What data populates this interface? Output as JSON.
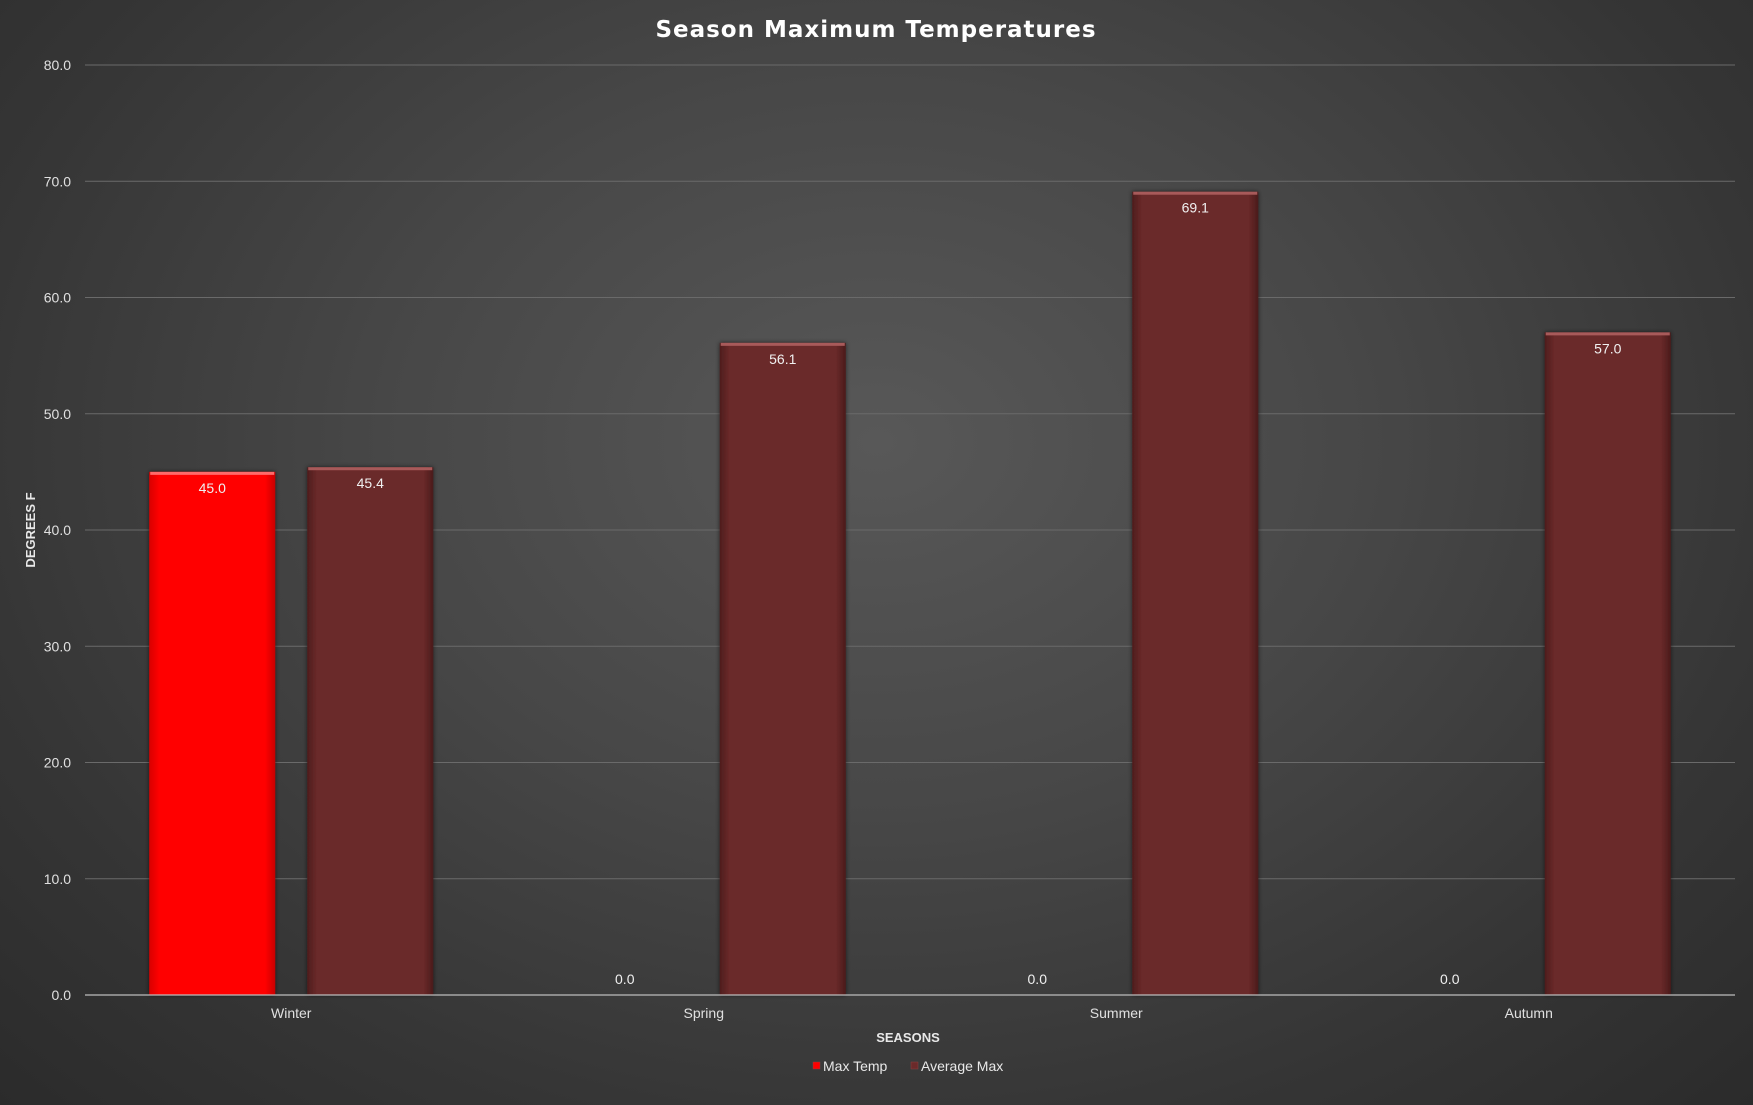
{
  "chart_data": {
    "type": "bar",
    "title": "Season Maximum Temperatures",
    "xlabel": "SEASONS",
    "ylabel": "DEGREES F",
    "categories": [
      "Winter",
      "Spring",
      "Summer",
      "Autumn"
    ],
    "series": [
      {
        "name": "Max Temp",
        "values": [
          45.0,
          0.0,
          0.0,
          0.0
        ],
        "color": "#ff0000"
      },
      {
        "name": "Average Max",
        "values": [
          45.4,
          56.1,
          69.1,
          57.0
        ],
        "color": "#6b2a2a"
      }
    ],
    "ylim": [
      0,
      80
    ],
    "yticks": [
      "0.0",
      "10.0",
      "20.0",
      "30.0",
      "40.0",
      "50.0",
      "60.0",
      "70.0",
      "80.0"
    ],
    "data_labels": [
      [
        "45.0",
        "0.0",
        "0.0",
        "0.0"
      ],
      [
        "45.4",
        "56.1",
        "69.1",
        "57.0"
      ]
    ],
    "grid": true,
    "legend": "bottom-center"
  }
}
